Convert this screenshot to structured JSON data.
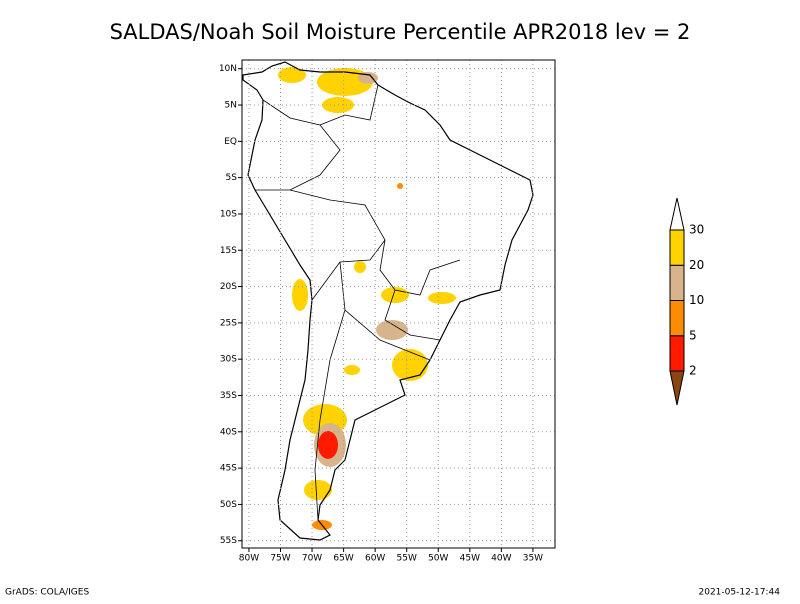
{
  "chart_data": {
    "type": "map",
    "title": "SALDAS/Noah Soil Moisture Percentile APR2018 lev = 2",
    "xlim": [
      -81.1,
      -31.5
    ],
    "ylim": [
      -56,
      11.2
    ],
    "xticks": [
      {
        "value": -80,
        "label": "80W"
      },
      {
        "value": -75,
        "label": "75W"
      },
      {
        "value": -70,
        "label": "70W"
      },
      {
        "value": -65,
        "label": "65W"
      },
      {
        "value": -60,
        "label": "60W"
      },
      {
        "value": -55,
        "label": "55W"
      },
      {
        "value": -50,
        "label": "50W"
      },
      {
        "value": -45,
        "label": "45W"
      },
      {
        "value": -40,
        "label": "40W"
      },
      {
        "value": -35,
        "label": "35W"
      }
    ],
    "yticks": [
      {
        "value": 10,
        "label": "10N"
      },
      {
        "value": 5,
        "label": "5N"
      },
      {
        "value": 0,
        "label": "EQ"
      },
      {
        "value": -5,
        "label": "5S"
      },
      {
        "value": -10,
        "label": "10S"
      },
      {
        "value": -15,
        "label": "15S"
      },
      {
        "value": -20,
        "label": "20S"
      },
      {
        "value": -25,
        "label": "25S"
      },
      {
        "value": -30,
        "label": "30S"
      },
      {
        "value": -35,
        "label": "35S"
      },
      {
        "value": -40,
        "label": "40S"
      },
      {
        "value": -45,
        "label": "45S"
      },
      {
        "value": -50,
        "label": "50S"
      },
      {
        "value": -55,
        "label": "55S"
      }
    ],
    "grid": true,
    "colorbar": {
      "levels": [
        2,
        5,
        10,
        20,
        30
      ],
      "colors": [
        "#8b4513",
        "#ff1a00",
        "#ff8c00",
        "#d8b48c",
        "#ffd200",
        "#ffffff"
      ]
    },
    "footer_left": "GrADS: COLA/IGES",
    "footer_right": "2021-05-12-17:44"
  }
}
